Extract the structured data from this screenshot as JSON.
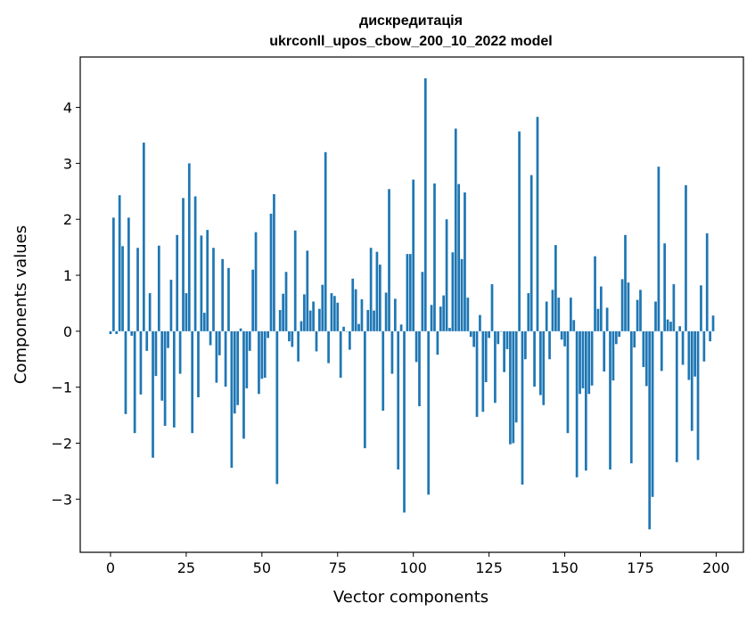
{
  "chart_data": {
    "type": "bar",
    "title": "дискредитація",
    "subtitle": "ukrconll_upos_cbow_200_10_2022 model",
    "xlabel": "Vector components",
    "ylabel": "Components values",
    "xlim": [
      -10,
      209
    ],
    "ylim": [
      -3.95,
      4.9
    ],
    "xticks": [
      0,
      25,
      50,
      75,
      100,
      125,
      150,
      175,
      200
    ],
    "xtick_labels": [
      "0",
      "25",
      "50",
      "75",
      "100",
      "125",
      "150",
      "175",
      "200"
    ],
    "yticks": [
      -3,
      -2,
      -1,
      0,
      1,
      2,
      3,
      4
    ],
    "ytick_labels": [
      "−3",
      "−2",
      "−1",
      "0",
      "1",
      "2",
      "3",
      "4"
    ],
    "grid": false,
    "bar_color": "#1f77b4",
    "x": [
      0,
      1,
      2,
      3,
      4,
      5,
      6,
      7,
      8,
      9,
      10,
      11,
      12,
      13,
      14,
      15,
      16,
      17,
      18,
      19,
      20,
      21,
      22,
      23,
      24,
      25,
      26,
      27,
      28,
      29,
      30,
      31,
      32,
      33,
      34,
      35,
      36,
      37,
      38,
      39,
      40,
      41,
      42,
      43,
      44,
      45,
      46,
      47,
      48,
      49,
      50,
      51,
      52,
      53,
      54,
      55,
      56,
      57,
      58,
      59,
      60,
      61,
      62,
      63,
      64,
      65,
      66,
      67,
      68,
      69,
      70,
      71,
      72,
      73,
      74,
      75,
      76,
      77,
      78,
      79,
      80,
      81,
      82,
      83,
      84,
      85,
      86,
      87,
      88,
      89,
      90,
      91,
      92,
      93,
      94,
      95,
      96,
      97,
      98,
      99,
      100,
      101,
      102,
      103,
      104,
      105,
      106,
      107,
      108,
      109,
      110,
      111,
      112,
      113,
      114,
      115,
      116,
      117,
      118,
      119,
      120,
      121,
      122,
      123,
      124,
      125,
      126,
      127,
      128,
      129,
      130,
      131,
      132,
      133,
      134,
      135,
      136,
      137,
      138,
      139,
      140,
      141,
      142,
      143,
      144,
      145,
      146,
      147,
      148,
      149,
      150,
      151,
      152,
      153,
      154,
      155,
      156,
      157,
      158,
      159,
      160,
      161,
      162,
      163,
      164,
      165,
      166,
      167,
      168,
      169,
      170,
      171,
      172,
      173,
      174,
      175,
      176,
      177,
      178,
      179,
      180,
      181,
      182,
      183,
      184,
      185,
      186,
      187,
      188,
      189,
      190,
      191,
      192,
      193,
      194,
      195,
      196,
      197,
      198,
      199
    ],
    "values": [
      -0.05,
      2.03,
      -0.05,
      2.43,
      1.52,
      -1.48,
      2.03,
      -0.08,
      -1.82,
      1.49,
      -1.13,
      3.37,
      -0.35,
      0.68,
      -2.26,
      -0.8,
      1.53,
      -1.24,
      -1.69,
      -0.3,
      0.92,
      -1.72,
      1.72,
      -0.76,
      2.38,
      0.68,
      3.0,
      -1.82,
      2.41,
      -1.18,
      1.71,
      0.33,
      1.81,
      -0.25,
      1.49,
      -0.92,
      -0.43,
      1.29,
      -0.99,
      1.13,
      -2.44,
      -1.47,
      -1.32,
      0.05,
      -1.92,
      -1.02,
      -0.35,
      1.1,
      1.77,
      -1.12,
      -0.85,
      -0.83,
      -0.12,
      2.1,
      2.45,
      -2.73,
      0.38,
      0.67,
      1.06,
      -0.18,
      -0.28,
      1.8,
      -0.54,
      0.18,
      0.66,
      1.44,
      0.37,
      0.53,
      -0.36,
      0.4,
      0.83,
      3.2,
      -0.57,
      0.68,
      0.63,
      0.51,
      -0.83,
      0.08,
      0.0,
      -0.33,
      0.94,
      0.75,
      0.13,
      0.57,
      -2.09,
      0.38,
      1.49,
      0.37,
      1.42,
      1.19,
      -1.42,
      0.69,
      2.54,
      -0.76,
      0.58,
      -2.47,
      0.12,
      -3.24,
      1.38,
      1.38,
      2.71,
      -0.55,
      -1.34,
      1.06,
      4.52,
      -2.92,
      0.47,
      2.64,
      -0.42,
      0.44,
      0.64,
      2.0,
      0.06,
      1.41,
      3.62,
      2.63,
      1.29,
      2.48,
      0.6,
      -0.1,
      -0.28,
      -1.53,
      0.29,
      -1.44,
      -0.91,
      -0.12,
      0.84,
      -1.28,
      -0.23,
      0.0,
      -0.73,
      -0.32,
      -2.02,
      -2.0,
      -1.63,
      3.57,
      -2.74,
      -0.5,
      0.68,
      2.79,
      -0.99,
      3.83,
      -1.14,
      -1.32,
      0.53,
      -0.5,
      0.74,
      1.54,
      0.6,
      -0.15,
      -0.27,
      -1.82,
      0.6,
      0.2,
      -2.61,
      -1.12,
      -1.02,
      -2.49,
      -1.12,
      -0.97,
      1.34,
      0.4,
      0.8,
      -0.72,
      0.42,
      -2.47,
      -0.88,
      -0.23,
      -0.1,
      0.93,
      1.72,
      0.87,
      -2.36,
      -0.29,
      0.56,
      0.74,
      -0.64,
      -0.98,
      -3.54,
      -2.96,
      0.53,
      2.94,
      -0.71,
      1.57,
      0.21,
      0.17,
      0.84,
      -2.34,
      0.09,
      -0.6,
      2.61,
      -0.87,
      -1.78,
      -0.81,
      -2.3,
      0.82,
      -0.54,
      1.75,
      -0.18,
      0.28
    ]
  }
}
